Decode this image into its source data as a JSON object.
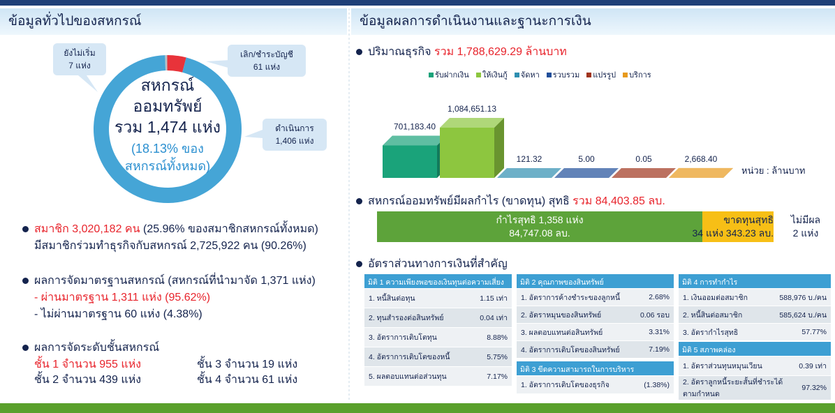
{
  "header": {
    "left_title": "ข้อมูลทั่วไปของสหกรณ์",
    "right_title": "ข้อมูลผลการดำเนินงานและฐานะการเงิน"
  },
  "chart_data": [
    {
      "type": "donut",
      "center_text": [
        "สหกรณ์",
        "ออมทรัพย์",
        "รวม 1,474 แห่ง",
        "(18.13% ของ",
        "สหกรณ์ทั้งหมด)"
      ],
      "categories": [
        "ยังไม่เริ่ม",
        "เลิก/ชำระบัญชี",
        "ดำเนินการ"
      ],
      "values": [
        7,
        61,
        1406
      ],
      "value_labels": [
        "7 แห่ง",
        "61 แห่ง",
        "1,406 แห่ง"
      ],
      "colors": [
        "#b7c2c8",
        "#e8333a",
        "#45a5d6"
      ]
    },
    {
      "type": "bar3d",
      "title": "ปริมาณธุรกิจ",
      "subtitle": "รวม 1,788,629.29 ล้านบาท",
      "unit_label": "หน่วย : ล้านบาท",
      "categories": [
        "รับฝากเงิน",
        "ให้เงินกู้",
        "จัดหา",
        "รวบรวม",
        "แปรรูป",
        "บริการ"
      ],
      "values": [
        701183.4,
        1084651.13,
        121.32,
        5.0,
        0.05,
        2668.4
      ],
      "value_labels": [
        "701,183.40",
        "1,084,651.13",
        "121.32",
        "5.00",
        "0.05",
        "2,668.40"
      ],
      "colors": [
        "#1aa37a",
        "#8dc63f",
        "#2e8fb0",
        "#1f4e9a",
        "#a0341c",
        "#e89a1c"
      ]
    }
  ],
  "general": {
    "members": {
      "highlight": "สมาชิก 3,020,182 คน",
      "rest": " (25.96% ของสมาชิกสหกรณ์ทั้งหมด)",
      "line2": "มีสมาชิกร่วมทำธุรกิจกับสหกรณ์ 2,725,922 คน (90.26%)"
    },
    "standards": {
      "title": "ผลการจัดมาตรฐานสหกรณ์ (สหกรณ์ที่นำมาจัด 1,371 แห่ง)",
      "passed": "- ผ่านมาตรฐาน 1,311 แห่ง (95.62%)",
      "failed": "- ไม่ผ่านมาตรฐาน 60 แห่ง (4.38%)"
    },
    "grading": {
      "title": "ผลการจัดระดับชั้นสหกรณ์",
      "grades": [
        "ชั้น 1 จำนวน 955 แห่ง",
        "ชั้น 2 จำนวน 439 แห่ง",
        "ชั้น 3 จำนวน 19 แห่ง",
        "ชั้น 4 จำนวน 61 แห่ง"
      ]
    }
  },
  "profit": {
    "title": "สหกรณ์ออมทรัพย์มีผลกำไร (ขาดทุน) สุทธิ ",
    "total": "รวม 84,403.85 ลบ.",
    "profit_label": "กำไรสุทธิ 1,358 แห่ง",
    "profit_amount": "84,747.08 ลบ.",
    "loss_label": "ขาดทุนสุทธิ",
    "loss_amount": "34 แห่ง 343.23 ลบ.",
    "none_label": "ไม่มีผล",
    "none_count": "2 แห่ง"
  },
  "ratios": {
    "title": "อัตราส่วนทางการเงินที่สำคัญ",
    "dimensions": [
      {
        "title": "มิติ 1 ความเพียงพอของเงินทุนต่อความเสี่ยง",
        "rows": [
          [
            "1. หนี้สินต่อทุน",
            "1.15 เท่า"
          ],
          [
            "2. ทุนสำรองต่อสินทรัพย์",
            "0.04 เท่า"
          ],
          [
            "3. อัตราการเติบโตทุน",
            "8.88%"
          ],
          [
            "4. อัตราการเติบโตของหนี้",
            "5.75%"
          ],
          [
            "5. ผลตอบแทนต่อส่วนทุน",
            "7.17%"
          ]
        ]
      },
      {
        "title": "มิติ 2 คุณภาพของสินทรัพย์",
        "rows": [
          [
            "1. อัตราการค้างชำระของลูกหนี้",
            "2.68%"
          ],
          [
            "2. อัตราหมุนของสินทรัพย์",
            "0.06 รอบ"
          ],
          [
            "3. ผลตอบแทนต่อสินทรัพย์",
            "3.31%"
          ],
          [
            "4. อัตราการเติบโตของสินทรัพย์",
            "7.19%"
          ]
        ]
      },
      {
        "title": "มิติ 3 ขีดความสามารถในการบริหาร",
        "rows": [
          [
            "1. อัตราการเติบโตของธุรกิจ",
            "(1.38%)"
          ]
        ]
      },
      {
        "title": "มิติ 4 การทำกำไร",
        "rows": [
          [
            "1. เงินออมต่อสมาชิก",
            "588,976 บ./คน"
          ],
          [
            "2. หนี้สินต่อสมาชิก",
            "585,624 บ./คน"
          ],
          [
            "3. อัตรากำไรสุทธิ",
            "57.77%"
          ]
        ]
      },
      {
        "title": "มิติ 5 สภาพคล่อง",
        "rows": [
          [
            "1. อัตราส่วนทุนหมุนเวียน",
            "0.39 เท่า"
          ],
          [
            "2. อัตราลูกหนี้ระยะสั้นที่ชำระได้ตามกำหนด",
            "97.32%"
          ]
        ]
      }
    ]
  }
}
